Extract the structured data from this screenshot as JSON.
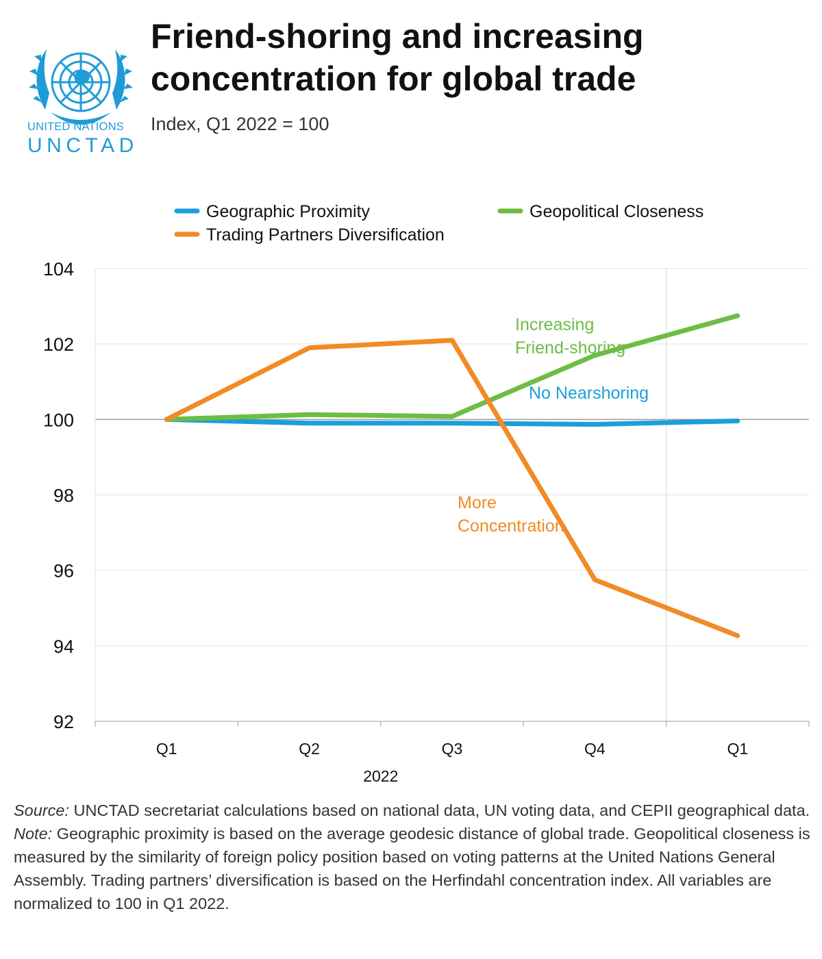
{
  "header": {
    "title": "Friend-shoring and increasing concentration for global trade",
    "subtitle": "Index, Q1 2022 = 100",
    "logo": {
      "line1": "UNITED NATIONS",
      "line2": "UNCTAD",
      "color": "#1f9bd7"
    }
  },
  "chart_data": {
    "type": "line",
    "categories": [
      "Q1",
      "Q2",
      "Q3",
      "Q4",
      "Q1"
    ],
    "group_label": "2022",
    "ylim": [
      92,
      104
    ],
    "yticks": [
      92,
      94,
      96,
      98,
      100,
      102,
      104
    ],
    "grid": true,
    "legend_position": "top",
    "series": [
      {
        "name": "Geographic Proximity",
        "color": "#1a9fdb",
        "values": [
          100,
          99.9,
          99.9,
          99.87,
          99.96
        ]
      },
      {
        "name": "Geopolitical Closeness",
        "color": "#6dbd45",
        "values": [
          100,
          100.13,
          100.08,
          101.7,
          102.75
        ]
      },
      {
        "name": "Trading Partners Diversification",
        "color": "#f28a25",
        "values": [
          100,
          101.9,
          102.1,
          95.75,
          94.27
        ]
      }
    ],
    "annotations": [
      {
        "lines": [
          "Increasing",
          "Friend-shoring"
        ],
        "color": "#6dbd45"
      },
      {
        "lines": [
          "No Nearshoring"
        ],
        "color": "#1a9fdb"
      },
      {
        "lines": [
          "More",
          "Concentration"
        ],
        "color": "#f28a25"
      }
    ]
  },
  "footer": {
    "source_label": "Source:",
    "source_text": " UNCTAD secretariat calculations based on national data, UN voting data, and CEPII geographical data.",
    "note_label": "Note:",
    "note_text": " Geographic proximity is based on the average geodesic distance of global trade. Geopolitical closeness is measured by the similarity of foreign policy position based on voting patterns at the United Nations General Assembly. Trading partners’ diversification is based on the Herfindahl concentration index. All variables are normalized to 100 in Q1 2022."
  }
}
